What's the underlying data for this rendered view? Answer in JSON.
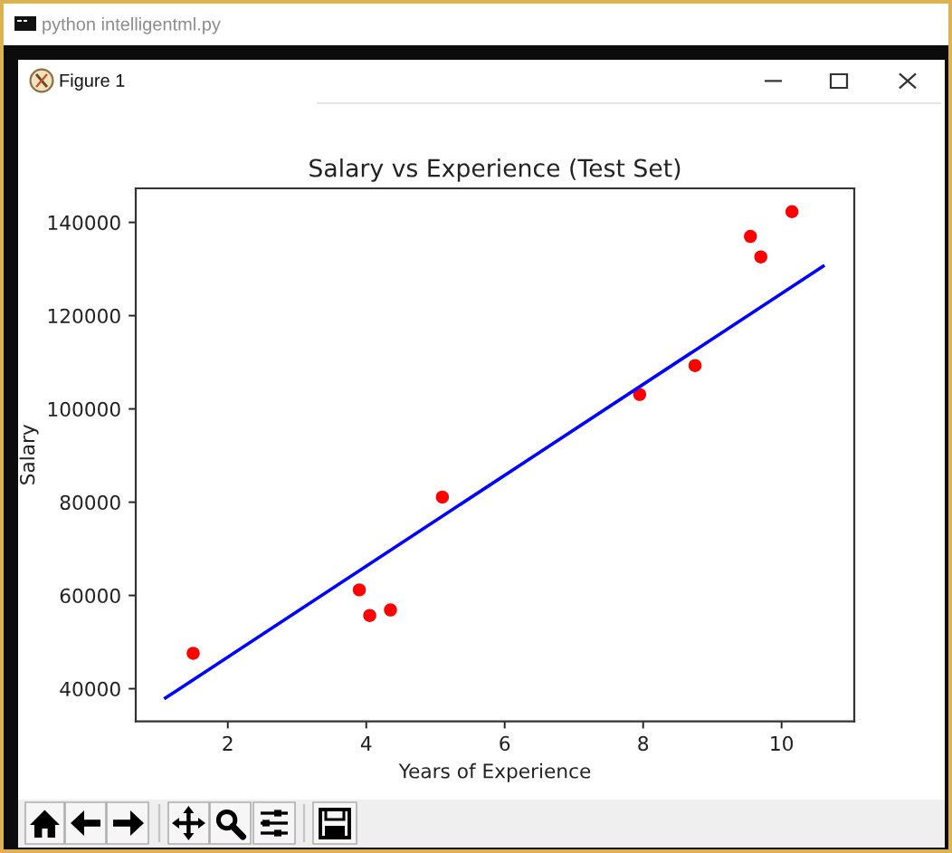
{
  "chart_data": {
    "type": "scatter",
    "title": "Salary vs Experience (Test Set)",
    "xlabel": "Years of Experience",
    "ylabel": "Salary",
    "annotations": [
      "python intelligentml.py",
      "Figure 1"
    ],
    "series": [
      {
        "color": "#ff0000",
        "marker": "circle",
        "x": [
          1.5,
          3.9,
          4.05,
          4.35,
          5.1,
          7.95,
          8.75,
          9.55,
          9.7,
          10.15
        ],
        "values": [
          47600,
          61200,
          55700,
          56900,
          81100,
          103100,
          109300,
          137000,
          132600,
          142300
        ]
      },
      {
        "type": "line",
        "color": "#0000ff",
        "line_style": "solid",
        "x": [
          1.1,
          10.6
        ],
        "values": [
          38000,
          130600
        ]
      }
    ],
    "xlim": [
      0.67,
      11.05
    ],
    "ylim": [
      33000,
      147300
    ],
    "xticks": [
      2,
      4,
      6,
      8,
      10
    ],
    "yticks": [
      40000,
      60000,
      80000,
      100000,
      120000,
      140000
    ]
  }
}
